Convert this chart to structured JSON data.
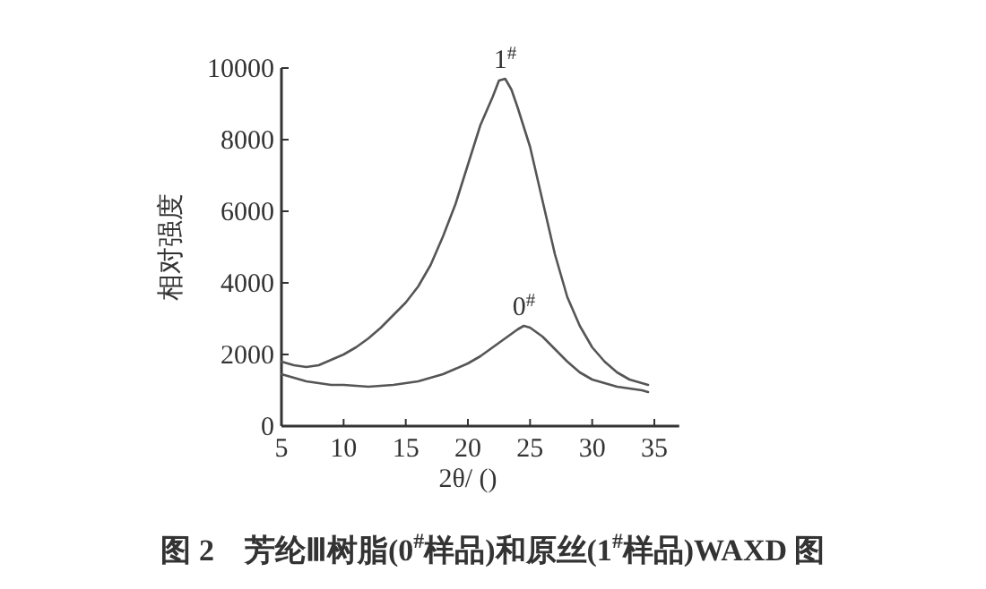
{
  "chart_data": {
    "type": "line",
    "title": "图 2　芳纶Ⅲ树脂(0$^{#}$样品)和原丝(1$^{#}$样品)WAXD 图",
    "xlabel": "2θ/ ()",
    "ylabel": "相对强度",
    "xlim": [
      5,
      37
    ],
    "ylim": [
      0,
      10000
    ],
    "xticks": [
      5,
      10,
      15,
      20,
      25,
      30,
      35
    ],
    "yticks": [
      0,
      2000,
      4000,
      6000,
      8000,
      10000
    ],
    "grid": false,
    "marker": "none",
    "line_style": "solid",
    "series": [
      {
        "name": "1$^{#}$",
        "color": "#555555",
        "x": [
          5,
          6,
          7,
          8,
          9,
          10,
          11,
          12,
          13,
          14,
          15,
          16,
          17,
          18,
          19,
          20,
          21,
          22,
          22.5,
          23,
          23.5,
          24,
          25,
          26,
          27,
          28,
          29,
          30,
          31,
          32,
          33,
          34,
          34.5
        ],
        "values": [
          1800,
          1700,
          1650,
          1700,
          1850,
          2000,
          2200,
          2450,
          2750,
          3100,
          3450,
          3900,
          4500,
          5300,
          6200,
          7300,
          8400,
          9200,
          9650,
          9700,
          9400,
          8900,
          7800,
          6300,
          4800,
          3600,
          2800,
          2200,
          1800,
          1500,
          1300,
          1200,
          1150
        ]
      },
      {
        "name": "0$^{#}$",
        "color": "#555555",
        "x": [
          5,
          6,
          7,
          8,
          9,
          10,
          12,
          14,
          16,
          18,
          19,
          20,
          21,
          22,
          23,
          24,
          24.5,
          25,
          26,
          27,
          28,
          29,
          30,
          31,
          32,
          33,
          34,
          34.5
        ],
        "values": [
          1450,
          1350,
          1250,
          1200,
          1150,
          1150,
          1100,
          1150,
          1250,
          1450,
          1600,
          1750,
          1950,
          2200,
          2450,
          2700,
          2800,
          2750,
          2500,
          2150,
          1800,
          1500,
          1300,
          1200,
          1100,
          1050,
          1000,
          950
        ]
      }
    ]
  }
}
